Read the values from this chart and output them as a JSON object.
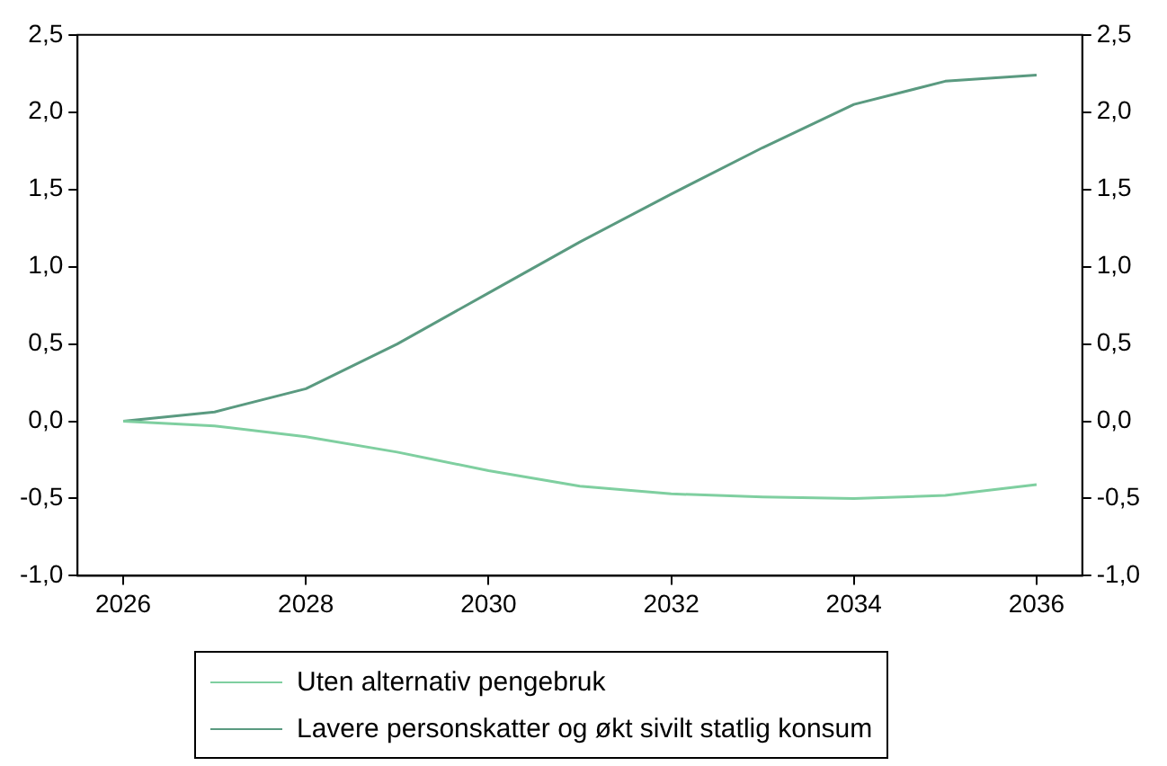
{
  "chart_data": {
    "type": "line",
    "x": [
      2026,
      2027,
      2028,
      2029,
      2030,
      2031,
      2032,
      2033,
      2034,
      2035,
      2036
    ],
    "series": [
      {
        "name": "Uten alternativ pengebruk",
        "color": "#7fcfa0",
        "values": [
          0,
          -0.03,
          -0.1,
          -0.2,
          -0.32,
          -0.42,
          -0.47,
          -0.49,
          -0.5,
          -0.48,
          -0.41
        ]
      },
      {
        "name": "Lavere personskatter og økt sivilt statlig konsum",
        "color": "#5a9a80",
        "values": [
          0,
          0.06,
          0.21,
          0.5,
          0.83,
          1.16,
          1.47,
          1.77,
          2.05,
          2.2,
          2.24
        ]
      }
    ],
    "xlim": [
      2025.5,
      2036.5
    ],
    "xticks": [
      2026,
      2028,
      2030,
      2032,
      2034,
      2036
    ],
    "ylim": [
      -1,
      2.5
    ],
    "yticks": [
      {
        "value": -1,
        "label": "-1,0"
      },
      {
        "value": -0.5,
        "label": "-0,5"
      },
      {
        "value": 0,
        "label": "0,0"
      },
      {
        "value": 0.5,
        "label": "0,5"
      },
      {
        "value": 1,
        "label": "1,0"
      },
      {
        "value": 1.5,
        "label": "1,5"
      },
      {
        "value": 2,
        "label": "2,0"
      },
      {
        "value": 2.5,
        "label": "2,5"
      }
    ],
    "y2lim": [
      -1,
      2.5
    ],
    "y2ticks": [
      {
        "value": -1,
        "label": "-1,0"
      },
      {
        "value": -0.5,
        "label": "-0,5"
      },
      {
        "value": 0,
        "label": "0,0"
      },
      {
        "value": 0.5,
        "label": "0,5"
      },
      {
        "value": 1,
        "label": "1,0"
      },
      {
        "value": 1.5,
        "label": "1,5"
      },
      {
        "value": 2,
        "label": "2,0"
      },
      {
        "value": 2.5,
        "label": "2,5"
      }
    ],
    "grid": false,
    "legend": "bottom",
    "marker": "none",
    "line_style": "solid"
  }
}
